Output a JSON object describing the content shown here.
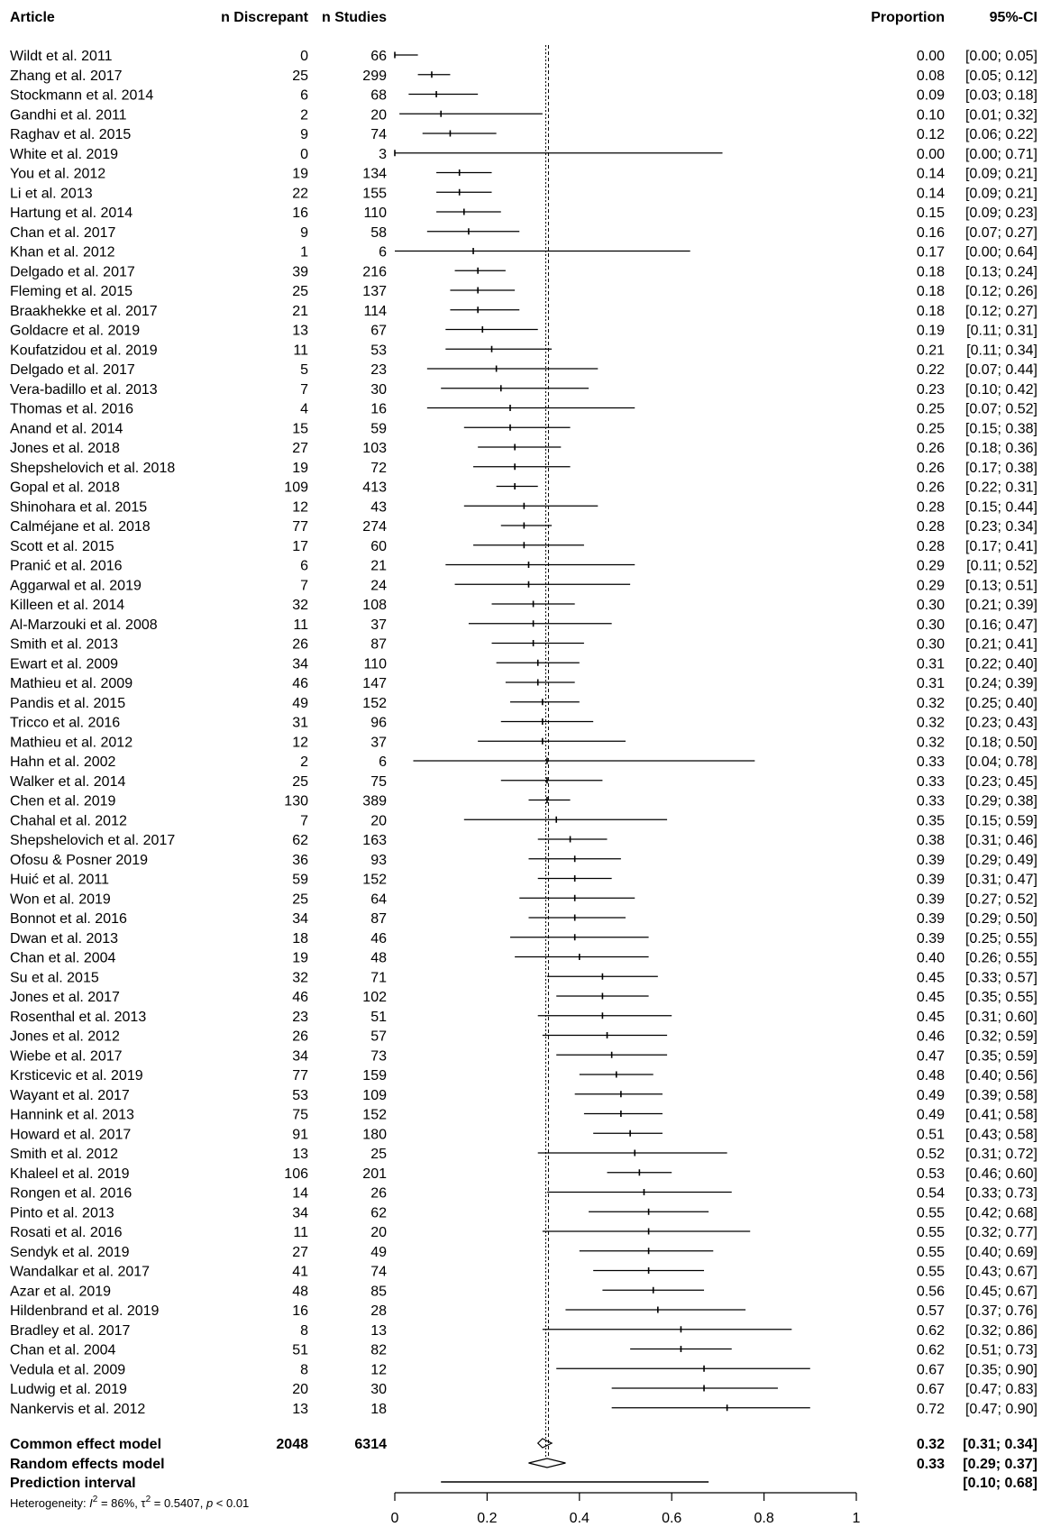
{
  "chart_data": {
    "type": "forest",
    "headers": {
      "article": "Article",
      "n_discrepant": "n Discrepant",
      "n_studies": "n Studies",
      "proportion": "Proportion",
      "ci": "95%-CI"
    },
    "studies": [
      {
        "article": "Wildt et al. 2011",
        "n_discrepant": "0",
        "n_studies": "66",
        "proportion": "0.00",
        "ci_text": "[0.00; 0.05]",
        "est": 0.0,
        "lo": 0.0,
        "hi": 0.05
      },
      {
        "article": "Zhang et al. 2017",
        "n_discrepant": "25",
        "n_studies": "299",
        "proportion": "0.08",
        "ci_text": "[0.05; 0.12]",
        "est": 0.08,
        "lo": 0.05,
        "hi": 0.12
      },
      {
        "article": "Stockmann et al. 2014",
        "n_discrepant": "6",
        "n_studies": "68",
        "proportion": "0.09",
        "ci_text": "[0.03; 0.18]",
        "est": 0.09,
        "lo": 0.03,
        "hi": 0.18
      },
      {
        "article": "Gandhi et al. 2011",
        "n_discrepant": "2",
        "n_studies": "20",
        "proportion": "0.10",
        "ci_text": "[0.01; 0.32]",
        "est": 0.1,
        "lo": 0.01,
        "hi": 0.32
      },
      {
        "article": "Raghav et al. 2015",
        "n_discrepant": "9",
        "n_studies": "74",
        "proportion": "0.12",
        "ci_text": "[0.06; 0.22]",
        "est": 0.12,
        "lo": 0.06,
        "hi": 0.22
      },
      {
        "article": "White et al. 2019",
        "n_discrepant": "0",
        "n_studies": "3",
        "proportion": "0.00",
        "ci_text": "[0.00; 0.71]",
        "est": 0.0,
        "lo": 0.0,
        "hi": 0.71
      },
      {
        "article": "You et al. 2012",
        "n_discrepant": "19",
        "n_studies": "134",
        "proportion": "0.14",
        "ci_text": "[0.09; 0.21]",
        "est": 0.14,
        "lo": 0.09,
        "hi": 0.21
      },
      {
        "article": "Li et al. 2013",
        "n_discrepant": "22",
        "n_studies": "155",
        "proportion": "0.14",
        "ci_text": "[0.09; 0.21]",
        "est": 0.14,
        "lo": 0.09,
        "hi": 0.21
      },
      {
        "article": "Hartung et al. 2014",
        "n_discrepant": "16",
        "n_studies": "110",
        "proportion": "0.15",
        "ci_text": "[0.09; 0.23]",
        "est": 0.15,
        "lo": 0.09,
        "hi": 0.23
      },
      {
        "article": "Chan et al. 2017",
        "n_discrepant": "9",
        "n_studies": "58",
        "proportion": "0.16",
        "ci_text": "[0.07; 0.27]",
        "est": 0.16,
        "lo": 0.07,
        "hi": 0.27
      },
      {
        "article": "Khan et al. 2012",
        "n_discrepant": "1",
        "n_studies": "6",
        "proportion": "0.17",
        "ci_text": "[0.00; 0.64]",
        "est": 0.17,
        "lo": 0.0,
        "hi": 0.64
      },
      {
        "article": "Delgado et al. 2017",
        "n_discrepant": "39",
        "n_studies": "216",
        "proportion": "0.18",
        "ci_text": "[0.13; 0.24]",
        "est": 0.18,
        "lo": 0.13,
        "hi": 0.24
      },
      {
        "article": "Fleming et al. 2015",
        "n_discrepant": "25",
        "n_studies": "137",
        "proportion": "0.18",
        "ci_text": "[0.12; 0.26]",
        "est": 0.18,
        "lo": 0.12,
        "hi": 0.26
      },
      {
        "article": "Braakhekke et al. 2017",
        "n_discrepant": "21",
        "n_studies": "114",
        "proportion": "0.18",
        "ci_text": "[0.12; 0.27]",
        "est": 0.18,
        "lo": 0.12,
        "hi": 0.27
      },
      {
        "article": "Goldacre et al. 2019",
        "n_discrepant": "13",
        "n_studies": "67",
        "proportion": "0.19",
        "ci_text": "[0.11; 0.31]",
        "est": 0.19,
        "lo": 0.11,
        "hi": 0.31
      },
      {
        "article": "Koufatzidou et al. 2019",
        "n_discrepant": "11",
        "n_studies": "53",
        "proportion": "0.21",
        "ci_text": "[0.11; 0.34]",
        "est": 0.21,
        "lo": 0.11,
        "hi": 0.34
      },
      {
        "article": "Delgado et al. 2017",
        "n_discrepant": "5",
        "n_studies": "23",
        "proportion": "0.22",
        "ci_text": "[0.07; 0.44]",
        "est": 0.22,
        "lo": 0.07,
        "hi": 0.44
      },
      {
        "article": "Vera-badillo et al. 2013",
        "n_discrepant": "7",
        "n_studies": "30",
        "proportion": "0.23",
        "ci_text": "[0.10; 0.42]",
        "est": 0.23,
        "lo": 0.1,
        "hi": 0.42
      },
      {
        "article": "Thomas et al. 2016",
        "n_discrepant": "4",
        "n_studies": "16",
        "proportion": "0.25",
        "ci_text": "[0.07; 0.52]",
        "est": 0.25,
        "lo": 0.07,
        "hi": 0.52
      },
      {
        "article": "Anand et al. 2014",
        "n_discrepant": "15",
        "n_studies": "59",
        "proportion": "0.25",
        "ci_text": "[0.15; 0.38]",
        "est": 0.25,
        "lo": 0.15,
        "hi": 0.38
      },
      {
        "article": "Jones et al. 2018",
        "n_discrepant": "27",
        "n_studies": "103",
        "proportion": "0.26",
        "ci_text": "[0.18; 0.36]",
        "est": 0.26,
        "lo": 0.18,
        "hi": 0.36
      },
      {
        "article": "Shepshelovich et al. 2018",
        "n_discrepant": "19",
        "n_studies": "72",
        "proportion": "0.26",
        "ci_text": "[0.17; 0.38]",
        "est": 0.26,
        "lo": 0.17,
        "hi": 0.38
      },
      {
        "article": "Gopal et al. 2018",
        "n_discrepant": "109",
        "n_studies": "413",
        "proportion": "0.26",
        "ci_text": "[0.22; 0.31]",
        "est": 0.26,
        "lo": 0.22,
        "hi": 0.31
      },
      {
        "article": "Shinohara et al. 2015",
        "n_discrepant": "12",
        "n_studies": "43",
        "proportion": "0.28",
        "ci_text": "[0.15; 0.44]",
        "est": 0.28,
        "lo": 0.15,
        "hi": 0.44
      },
      {
        "article": "Calméjane et al. 2018",
        "n_discrepant": "77",
        "n_studies": "274",
        "proportion": "0.28",
        "ci_text": "[0.23; 0.34]",
        "est": 0.28,
        "lo": 0.23,
        "hi": 0.34
      },
      {
        "article": "Scott et al. 2015",
        "n_discrepant": "17",
        "n_studies": "60",
        "proportion": "0.28",
        "ci_text": "[0.17; 0.41]",
        "est": 0.28,
        "lo": 0.17,
        "hi": 0.41
      },
      {
        "article": "Pranić et al. 2016",
        "n_discrepant": "6",
        "n_studies": "21",
        "proportion": "0.29",
        "ci_text": "[0.11; 0.52]",
        "est": 0.29,
        "lo": 0.11,
        "hi": 0.52
      },
      {
        "article": "Aggarwal et al. 2019",
        "n_discrepant": "7",
        "n_studies": "24",
        "proportion": "0.29",
        "ci_text": "[0.13; 0.51]",
        "est": 0.29,
        "lo": 0.13,
        "hi": 0.51
      },
      {
        "article": "Killeen et al. 2014",
        "n_discrepant": "32",
        "n_studies": "108",
        "proportion": "0.30",
        "ci_text": "[0.21; 0.39]",
        "est": 0.3,
        "lo": 0.21,
        "hi": 0.39
      },
      {
        "article": "Al-Marzouki et al. 2008",
        "n_discrepant": "11",
        "n_studies": "37",
        "proportion": "0.30",
        "ci_text": "[0.16; 0.47]",
        "est": 0.3,
        "lo": 0.16,
        "hi": 0.47
      },
      {
        "article": "Smith et al. 2013",
        "n_discrepant": "26",
        "n_studies": "87",
        "proportion": "0.30",
        "ci_text": "[0.21; 0.41]",
        "est": 0.3,
        "lo": 0.21,
        "hi": 0.41
      },
      {
        "article": "Ewart et al. 2009",
        "n_discrepant": "34",
        "n_studies": "110",
        "proportion": "0.31",
        "ci_text": "[0.22; 0.40]",
        "est": 0.31,
        "lo": 0.22,
        "hi": 0.4
      },
      {
        "article": "Mathieu et al. 2009",
        "n_discrepant": "46",
        "n_studies": "147",
        "proportion": "0.31",
        "ci_text": "[0.24; 0.39]",
        "est": 0.31,
        "lo": 0.24,
        "hi": 0.39
      },
      {
        "article": "Pandis et al. 2015",
        "n_discrepant": "49",
        "n_studies": "152",
        "proportion": "0.32",
        "ci_text": "[0.25; 0.40]",
        "est": 0.32,
        "lo": 0.25,
        "hi": 0.4
      },
      {
        "article": "Tricco et al. 2016",
        "n_discrepant": "31",
        "n_studies": "96",
        "proportion": "0.32",
        "ci_text": "[0.23; 0.43]",
        "est": 0.32,
        "lo": 0.23,
        "hi": 0.43
      },
      {
        "article": "Mathieu et al. 2012",
        "n_discrepant": "12",
        "n_studies": "37",
        "proportion": "0.32",
        "ci_text": "[0.18; 0.50]",
        "est": 0.32,
        "lo": 0.18,
        "hi": 0.5
      },
      {
        "article": "Hahn et al. 2002",
        "n_discrepant": "2",
        "n_studies": "6",
        "proportion": "0.33",
        "ci_text": "[0.04; 0.78]",
        "est": 0.33,
        "lo": 0.04,
        "hi": 0.78
      },
      {
        "article": "Walker et al. 2014",
        "n_discrepant": "25",
        "n_studies": "75",
        "proportion": "0.33",
        "ci_text": "[0.23; 0.45]",
        "est": 0.33,
        "lo": 0.23,
        "hi": 0.45
      },
      {
        "article": "Chen et al. 2019",
        "n_discrepant": "130",
        "n_studies": "389",
        "proportion": "0.33",
        "ci_text": "[0.29; 0.38]",
        "est": 0.33,
        "lo": 0.29,
        "hi": 0.38
      },
      {
        "article": "Chahal et al. 2012",
        "n_discrepant": "7",
        "n_studies": "20",
        "proportion": "0.35",
        "ci_text": "[0.15; 0.59]",
        "est": 0.35,
        "lo": 0.15,
        "hi": 0.59
      },
      {
        "article": "Shepshelovich et al. 2017",
        "n_discrepant": "62",
        "n_studies": "163",
        "proportion": "0.38",
        "ci_text": "[0.31; 0.46]",
        "est": 0.38,
        "lo": 0.31,
        "hi": 0.46
      },
      {
        "article": "Ofosu & Posner 2019",
        "n_discrepant": "36",
        "n_studies": "93",
        "proportion": "0.39",
        "ci_text": "[0.29; 0.49]",
        "est": 0.39,
        "lo": 0.29,
        "hi": 0.49
      },
      {
        "article": "Huić et al. 2011",
        "n_discrepant": "59",
        "n_studies": "152",
        "proportion": "0.39",
        "ci_text": "[0.31; 0.47]",
        "est": 0.39,
        "lo": 0.31,
        "hi": 0.47
      },
      {
        "article": "Won et al. 2019",
        "n_discrepant": "25",
        "n_studies": "64",
        "proportion": "0.39",
        "ci_text": "[0.27; 0.52]",
        "est": 0.39,
        "lo": 0.27,
        "hi": 0.52
      },
      {
        "article": "Bonnot et al. 2016",
        "n_discrepant": "34",
        "n_studies": "87",
        "proportion": "0.39",
        "ci_text": "[0.29; 0.50]",
        "est": 0.39,
        "lo": 0.29,
        "hi": 0.5
      },
      {
        "article": "Dwan et al. 2013",
        "n_discrepant": "18",
        "n_studies": "46",
        "proportion": "0.39",
        "ci_text": "[0.25; 0.55]",
        "est": 0.39,
        "lo": 0.25,
        "hi": 0.55
      },
      {
        "article": "Chan et al. 2004",
        "n_discrepant": "19",
        "n_studies": "48",
        "proportion": "0.40",
        "ci_text": "[0.26; 0.55]",
        "est": 0.4,
        "lo": 0.26,
        "hi": 0.55
      },
      {
        "article": "Su et al. 2015",
        "n_discrepant": "32",
        "n_studies": "71",
        "proportion": "0.45",
        "ci_text": "[0.33; 0.57]",
        "est": 0.45,
        "lo": 0.33,
        "hi": 0.57
      },
      {
        "article": "Jones et al. 2017",
        "n_discrepant": "46",
        "n_studies": "102",
        "proportion": "0.45",
        "ci_text": "[0.35; 0.55]",
        "est": 0.45,
        "lo": 0.35,
        "hi": 0.55
      },
      {
        "article": "Rosenthal et al. 2013",
        "n_discrepant": "23",
        "n_studies": "51",
        "proportion": "0.45",
        "ci_text": "[0.31; 0.60]",
        "est": 0.45,
        "lo": 0.31,
        "hi": 0.6
      },
      {
        "article": "Jones et al. 2012",
        "n_discrepant": "26",
        "n_studies": "57",
        "proportion": "0.46",
        "ci_text": "[0.32; 0.59]",
        "est": 0.46,
        "lo": 0.32,
        "hi": 0.59
      },
      {
        "article": "Wiebe et al. 2017",
        "n_discrepant": "34",
        "n_studies": "73",
        "proportion": "0.47",
        "ci_text": "[0.35; 0.59]",
        "est": 0.47,
        "lo": 0.35,
        "hi": 0.59
      },
      {
        "article": "Krsticevic et al. 2019",
        "n_discrepant": "77",
        "n_studies": "159",
        "proportion": "0.48",
        "ci_text": "[0.40; 0.56]",
        "est": 0.48,
        "lo": 0.4,
        "hi": 0.56
      },
      {
        "article": "Wayant et al. 2017",
        "n_discrepant": "53",
        "n_studies": "109",
        "proportion": "0.49",
        "ci_text": "[0.39; 0.58]",
        "est": 0.49,
        "lo": 0.39,
        "hi": 0.58
      },
      {
        "article": "Hannink et al. 2013",
        "n_discrepant": "75",
        "n_studies": "152",
        "proportion": "0.49",
        "ci_text": "[0.41; 0.58]",
        "est": 0.49,
        "lo": 0.41,
        "hi": 0.58
      },
      {
        "article": "Howard et al. 2017",
        "n_discrepant": "91",
        "n_studies": "180",
        "proportion": "0.51",
        "ci_text": "[0.43; 0.58]",
        "est": 0.51,
        "lo": 0.43,
        "hi": 0.58
      },
      {
        "article": "Smith et al. 2012",
        "n_discrepant": "13",
        "n_studies": "25",
        "proportion": "0.52",
        "ci_text": "[0.31; 0.72]",
        "est": 0.52,
        "lo": 0.31,
        "hi": 0.72
      },
      {
        "article": "Khaleel et al. 2019",
        "n_discrepant": "106",
        "n_studies": "201",
        "proportion": "0.53",
        "ci_text": "[0.46; 0.60]",
        "est": 0.53,
        "lo": 0.46,
        "hi": 0.6
      },
      {
        "article": "Rongen et al. 2016",
        "n_discrepant": "14",
        "n_studies": "26",
        "proportion": "0.54",
        "ci_text": "[0.33; 0.73]",
        "est": 0.54,
        "lo": 0.33,
        "hi": 0.73
      },
      {
        "article": "Pinto et al. 2013",
        "n_discrepant": "34",
        "n_studies": "62",
        "proportion": "0.55",
        "ci_text": "[0.42; 0.68]",
        "est": 0.55,
        "lo": 0.42,
        "hi": 0.68
      },
      {
        "article": "Rosati et al. 2016",
        "n_discrepant": "11",
        "n_studies": "20",
        "proportion": "0.55",
        "ci_text": "[0.32; 0.77]",
        "est": 0.55,
        "lo": 0.32,
        "hi": 0.77
      },
      {
        "article": "Sendyk et al. 2019",
        "n_discrepant": "27",
        "n_studies": "49",
        "proportion": "0.55",
        "ci_text": "[0.40; 0.69]",
        "est": 0.55,
        "lo": 0.4,
        "hi": 0.69
      },
      {
        "article": "Wandalkar et al. 2017",
        "n_discrepant": "41",
        "n_studies": "74",
        "proportion": "0.55",
        "ci_text": "[0.43; 0.67]",
        "est": 0.55,
        "lo": 0.43,
        "hi": 0.67
      },
      {
        "article": "Azar et al. 2019",
        "n_discrepant": "48",
        "n_studies": "85",
        "proportion": "0.56",
        "ci_text": "[0.45; 0.67]",
        "est": 0.56,
        "lo": 0.45,
        "hi": 0.67
      },
      {
        "article": "Hildenbrand et al. 2019",
        "n_discrepant": "16",
        "n_studies": "28",
        "proportion": "0.57",
        "ci_text": "[0.37; 0.76]",
        "est": 0.57,
        "lo": 0.37,
        "hi": 0.76
      },
      {
        "article": "Bradley et al. 2017",
        "n_discrepant": "8",
        "n_studies": "13",
        "proportion": "0.62",
        "ci_text": "[0.32; 0.86]",
        "est": 0.62,
        "lo": 0.32,
        "hi": 0.86
      },
      {
        "article": "Chan et al. 2004",
        "n_discrepant": "51",
        "n_studies": "82",
        "proportion": "0.62",
        "ci_text": "[0.51; 0.73]",
        "est": 0.62,
        "lo": 0.51,
        "hi": 0.73
      },
      {
        "article": "Vedula et al. 2009",
        "n_discrepant": "8",
        "n_studies": "12",
        "proportion": "0.67",
        "ci_text": "[0.35; 0.90]",
        "est": 0.67,
        "lo": 0.35,
        "hi": 0.9
      },
      {
        "article": "Ludwig et al. 2019",
        "n_discrepant": "20",
        "n_studies": "30",
        "proportion": "0.67",
        "ci_text": "[0.47; 0.83]",
        "est": 0.67,
        "lo": 0.47,
        "hi": 0.83
      },
      {
        "article": "Nankervis et al. 2012",
        "n_discrepant": "13",
        "n_studies": "18",
        "proportion": "0.72",
        "ci_text": "[0.47; 0.90]",
        "est": 0.72,
        "lo": 0.47,
        "hi": 0.9
      }
    ],
    "summary": [
      {
        "label": "Common effect model",
        "n_discrepant": "2048",
        "n_studies": "6314",
        "proportion": "0.32",
        "ci_text": "[0.31; 0.34]",
        "est": 0.32,
        "lo": 0.31,
        "hi": 0.34,
        "kind": "diamond"
      },
      {
        "label": "Random effects model",
        "n_discrepant": "",
        "n_studies": "",
        "proportion": "0.33",
        "ci_text": "[0.29; 0.37]",
        "est": 0.33,
        "lo": 0.29,
        "hi": 0.37,
        "kind": "diamond"
      },
      {
        "label": "Prediction interval",
        "n_discrepant": "",
        "n_studies": "",
        "proportion": "",
        "ci_text": "[0.10; 0.68]",
        "est": null,
        "lo": 0.1,
        "hi": 0.68,
        "kind": "bar"
      }
    ],
    "heterogeneity": {
      "prefix": "Heterogeneity: ",
      "I2": "I",
      "I2_sup": "2",
      "I2_val": " = 86%, ",
      "tau": "τ",
      "tau_sup": "2",
      "tau_val": " = 0.5407, ",
      "p": "p",
      "p_val": " < 0.01"
    },
    "reference_line": 0.33,
    "x_axis": {
      "min": 0,
      "max": 1,
      "ticks": [
        0,
        0.2,
        0.4,
        0.6,
        0.8,
        1
      ],
      "tick_labels": [
        "0",
        "0.2",
        "0.4",
        "0.6",
        "0.8",
        "1"
      ]
    },
    "colors": {
      "ink": "#000000",
      "background": "#ffffff"
    }
  }
}
